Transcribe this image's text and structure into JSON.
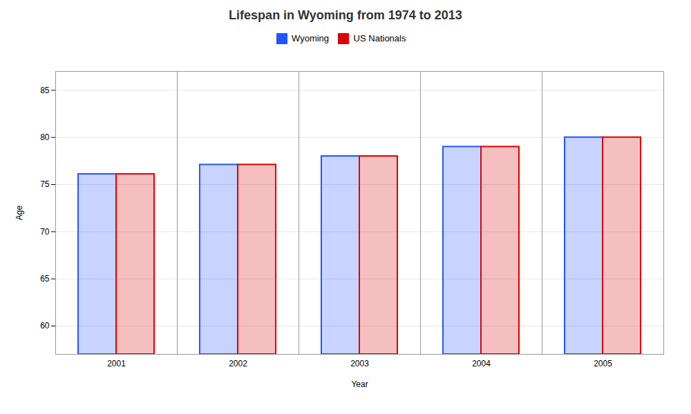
{
  "chart_data": {
    "type": "bar",
    "title": "Lifespan in Wyoming from 1974 to 2013",
    "xlabel": "Year",
    "ylabel": "Age",
    "categories": [
      "2001",
      "2002",
      "2003",
      "2004",
      "2005"
    ],
    "series": [
      {
        "name": "Wyoming",
        "color": "#2255ff",
        "values": [
          76.1,
          77.1,
          78.0,
          79.0,
          80.0
        ]
      },
      {
        "name": "US Nationals",
        "color": "#dd0000",
        "values": [
          76.1,
          77.1,
          78.0,
          79.0,
          80.0
        ]
      }
    ],
    "ylim": [
      57,
      87
    ],
    "yticks": [
      60,
      65,
      70,
      75,
      80,
      85
    ],
    "grid": true,
    "legend": "top"
  }
}
